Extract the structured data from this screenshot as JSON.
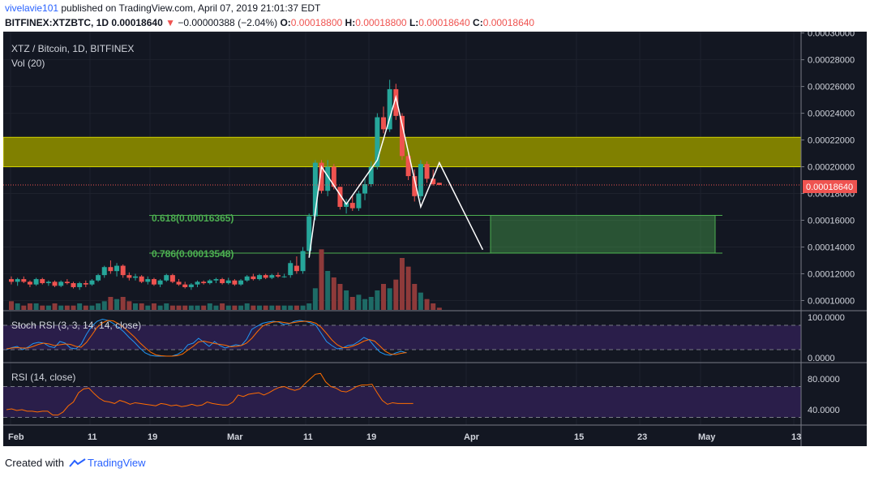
{
  "header": {
    "user": "vivelavie101",
    "published": " published on TradingView.com, April 07, 2019 21:01:37 EDT",
    "symbol": "BITFINEX:XTZBTC, 1D",
    "last": "0.00018640",
    "change_arrow": "▼",
    "change": "−0.00000388 (−2.04%)",
    "o_label": "O:",
    "o_value": "0.00018800",
    "h_label": "H:",
    "h_value": "0.00018800",
    "l_label": "L:",
    "l_value": "0.00018640",
    "c_label": "C:",
    "c_value": "0.00018640"
  },
  "main_pane": {
    "legend_title": "XTZ / Bitcoin, 1D, BITFINEX",
    "legend_vol": "Vol (20)",
    "price_badge": "0.00018640",
    "fib_618": "0.618(0.00016365)",
    "fib_786": "0.786(0.00013548)"
  },
  "stoch_pane": {
    "legend": "Stoch RSI (3, 3, 14, 14, close)"
  },
  "rsi_pane": {
    "legend": "RSI (14, close)"
  },
  "footer": {
    "created": "Created with",
    "brand": "TradingView"
  },
  "colors": {
    "background": "#131722",
    "up": "#26a69a",
    "down": "#ef5350",
    "zone_yellow": "#808000",
    "zone_green": "#4caf50",
    "stoch_k": "#2196f3",
    "stoch_d": "#ff6d00",
    "rsi": "#ff6d00",
    "band_purple": "#2a1e4a"
  },
  "chart_data": [
    {
      "type": "candlestick",
      "title": "XTZ / Bitcoin, 1D, BITFINEX",
      "ylim": [
        9.3e-05,
        0.000301
      ],
      "y_ticks": [
        "0.00030000",
        "0.00028000",
        "0.00026000",
        "0.00024000",
        "0.00022000",
        "0.00020000",
        "0.00018000",
        "0.00016000",
        "0.00014000",
        "0.00012000",
        "0.00010000"
      ],
      "x_ticks": [
        "Feb",
        "11",
        "19",
        "Mar",
        "11",
        "19",
        "Apr",
        "15",
        "23",
        "May",
        "13"
      ],
      "resistance_zone": [
        0.0002,
        0.000222
      ],
      "fib_levels": [
        {
          "label": "0.618",
          "value": 0.00016365
        },
        {
          "label": "0.786",
          "value": 0.00013548
        }
      ],
      "last_price": 0.0001864,
      "candles": [
        [
          0.000116,
          0.000118,
          0.000112,
          0.000114
        ],
        [
          0.000114,
          0.000117,
          0.000111,
          0.000116
        ],
        [
          0.000116,
          0.000118,
          0.000113,
          0.000114
        ],
        [
          0.000114,
          0.000115,
          0.00011,
          0.000112
        ],
        [
          0.000112,
          0.000117,
          0.000111,
          0.000116
        ],
        [
          0.000116,
          0.000117,
          0.000112,
          0.000113
        ],
        [
          0.000113,
          0.000115,
          0.000111,
          0.000114
        ],
        [
          0.000114,
          0.000115,
          0.00011,
          0.000111
        ],
        [
          0.000111,
          0.000115,
          0.00011,
          0.000114
        ],
        [
          0.000114,
          0.000116,
          0.000112,
          0.000113
        ],
        [
          0.000113,
          0.000114,
          0.000109,
          0.00011
        ],
        [
          0.00011,
          0.000114,
          0.000108,
          0.000113
        ],
        [
          0.000113,
          0.000115,
          0.00011,
          0.000112
        ],
        [
          0.000112,
          0.000116,
          0.000111,
          0.000115
        ],
        [
          0.000115,
          0.00012,
          0.000114,
          0.000119
        ],
        [
          0.000119,
          0.000126,
          0.000117,
          0.000125
        ],
        [
          0.000125,
          0.00013,
          0.00012,
          0.000122
        ],
        [
          0.000122,
          0.000128,
          0.000118,
          0.000126
        ],
        [
          0.000126,
          0.000127,
          0.000117,
          0.000119
        ],
        [
          0.000119,
          0.000121,
          0.000115,
          0.000117
        ],
        [
          0.000117,
          0.00012,
          0.000115,
          0.000118
        ],
        [
          0.000118,
          0.000119,
          0.000113,
          0.000114
        ],
        [
          0.000114,
          0.000118,
          0.000112,
          0.000116
        ],
        [
          0.000116,
          0.000117,
          0.000111,
          0.000112
        ],
        [
          0.000112,
          0.000116,
          0.00011,
          0.000115
        ],
        [
          0.000115,
          0.00012,
          0.000114,
          0.000119
        ],
        [
          0.000119,
          0.00012,
          0.000113,
          0.000114
        ],
        [
          0.000114,
          0.000116,
          0.000111,
          0.000112
        ],
        [
          0.000112,
          0.000114,
          0.000109,
          0.00011
        ],
        [
          0.00011,
          0.000113,
          0.000108,
          0.000112
        ],
        [
          0.000112,
          0.000115,
          0.00011,
          0.000114
        ],
        [
          0.000114,
          0.000115,
          0.000112,
          0.000113
        ],
        [
          0.000113,
          0.000116,
          0.000112,
          0.000115
        ],
        [
          0.000115,
          0.000117,
          0.000113,
          0.000116
        ],
        [
          0.000116,
          0.000117,
          0.000112,
          0.000113
        ],
        [
          0.000113,
          0.000117,
          0.000112,
          0.000115
        ],
        [
          0.000115,
          0.000116,
          0.000111,
          0.000112
        ],
        [
          0.000112,
          0.000116,
          0.000111,
          0.000115
        ],
        [
          0.000115,
          0.000119,
          0.000114,
          0.000118
        ],
        [
          0.000118,
          0.00012,
          0.000115,
          0.000116
        ],
        [
          0.000116,
          0.00012,
          0.000115,
          0.000119
        ],
        [
          0.000119,
          0.00012,
          0.000116,
          0.000117
        ],
        [
          0.000117,
          0.00012,
          0.000116,
          0.000119
        ],
        [
          0.000119,
          0.000121,
          0.000117,
          0.000118
        ],
        [
          0.000118,
          0.00012,
          0.000117,
          0.000118
        ],
        [
          0.000119,
          0.00013,
          0.000117,
          0.000128
        ],
        [
          0.000126,
          0.000133,
          0.00012,
          0.000122
        ],
        [
          0.000122,
          0.00014,
          0.00012,
          0.000137
        ],
        [
          0.000137,
          0.000165,
          0.000133,
          0.000163
        ],
        [
          0.000163,
          0.000205,
          0.00016,
          0.000203
        ],
        [
          0.000203,
          0.000205,
          0.00018,
          0.000182
        ],
        [
          0.000182,
          0.000205,
          0.000178,
          0.0002
        ],
        [
          0.0002,
          0.000202,
          0.000183,
          0.000185
        ],
        [
          0.000185,
          0.000185,
          0.000168,
          0.00017
        ],
        [
          0.00017,
          0.000176,
          0.000165,
          0.000173
        ],
        [
          0.000173,
          0.000178,
          0.000167,
          0.000169
        ],
        [
          0.000169,
          0.000182,
          0.000167,
          0.00018
        ],
        [
          0.00018,
          0.000191,
          0.000175,
          0.000187
        ],
        [
          0.000187,
          0.000204,
          0.000185,
          0.0002
        ],
        [
          0.0002,
          0.00024,
          0.000198,
          0.000237
        ],
        [
          0.000237,
          0.000245,
          0.000225,
          0.000228
        ],
        [
          0.000228,
          0.000265,
          0.000226,
          0.000258
        ],
        [
          0.000258,
          0.000262,
          0.000235,
          0.000238
        ],
        [
          0.000238,
          0.00024,
          0.000205,
          0.000208
        ],
        [
          0.000208,
          0.00021,
          0.00019,
          0.000193
        ],
        [
          0.000193,
          0.000198,
          0.000174,
          0.000178
        ],
        [
          0.000178,
          0.000205,
          0.000175,
          0.000202
        ],
        [
          0.000202,
          0.000204,
          0.000188,
          0.000191
        ],
        [
          0.000191,
          0.000198,
          0.000186,
          0.000187
        ],
        [
          0.000188,
          0.000188,
          0.0001864,
          0.0001864
        ]
      ],
      "volume": [
        4,
        3,
        2,
        3,
        3,
        2,
        2,
        3,
        2,
        2,
        2,
        3,
        2,
        2,
        3,
        4,
        6,
        5,
        6,
        4,
        3,
        3,
        2,
        3,
        2,
        3,
        2,
        2,
        2,
        2,
        2,
        2,
        3,
        2,
        3,
        2,
        2,
        2,
        3,
        2,
        2,
        2,
        2,
        2,
        2,
        2,
        2,
        2,
        3,
        10,
        28,
        18,
        15,
        12,
        9,
        6,
        7,
        5,
        6,
        9,
        12,
        10,
        14,
        24,
        20,
        12,
        8,
        5,
        3,
        1
      ],
      "volume_max": 30
    },
    {
      "type": "line",
      "title": "Stoch RSI (3, 3, 14, 14, close)",
      "ylim": [
        0,
        100
      ],
      "y_ticks": [
        "100.0000",
        "0.0000"
      ],
      "bands": [
        80,
        20
      ],
      "series": [
        {
          "name": "K",
          "values": [
            20,
            25,
            28,
            20,
            26,
            35,
            38,
            36,
            28,
            25,
            40,
            36,
            24,
            22,
            33,
            58,
            78,
            90,
            95,
            92,
            85,
            75,
            64,
            50,
            38,
            24,
            12,
            6,
            4,
            4,
            4,
            4,
            8,
            16,
            32,
            36,
            48,
            38,
            28,
            40,
            30,
            24,
            28,
            32,
            30,
            45,
            70,
            78,
            85,
            88,
            90,
            88,
            82,
            84,
            90,
            92,
            90,
            86,
            80,
            60,
            40,
            30,
            22,
            24,
            30,
            32,
            40,
            50,
            44,
            28,
            14,
            8,
            6,
            12,
            16,
            12
          ]
        },
        {
          "name": "D",
          "values": [
            22,
            24,
            25,
            24,
            24,
            28,
            33,
            36,
            34,
            30,
            32,
            34,
            33,
            28,
            26,
            38,
            56,
            75,
            86,
            92,
            91,
            84,
            75,
            63,
            51,
            37,
            25,
            14,
            7,
            5,
            4,
            4,
            5,
            9,
            19,
            28,
            39,
            41,
            38,
            35,
            33,
            31,
            27,
            28,
            30,
            36,
            48,
            64,
            78,
            84,
            88,
            89,
            87,
            85,
            87,
            89,
            90,
            89,
            85,
            75,
            60,
            44,
            32,
            25,
            25,
            29,
            34,
            41,
            45,
            41,
            29,
            16,
            9,
            8,
            11,
            13
          ]
        }
      ]
    },
    {
      "type": "line",
      "title": "RSI (14, close)",
      "ylim": [
        20,
        100
      ],
      "y_ticks": [
        "80.0000",
        "40.0000"
      ],
      "bands": [
        70,
        30
      ],
      "series": [
        {
          "name": "RSI",
          "values": [
            40,
            41,
            39,
            40,
            38,
            38,
            37,
            38,
            38,
            33,
            33,
            37,
            45,
            50,
            62,
            67,
            68,
            61,
            55,
            51,
            50,
            48,
            52,
            50,
            47,
            49,
            48,
            47,
            46,
            45,
            48,
            47,
            45,
            46,
            44,
            45,
            47,
            45,
            46,
            50,
            48,
            47,
            46,
            46,
            50,
            59,
            57,
            60,
            61,
            62,
            59,
            62,
            66,
            69,
            70,
            67,
            65,
            67,
            74,
            80,
            86,
            87,
            76,
            70,
            68,
            64,
            63,
            66,
            70,
            72,
            72,
            73,
            62,
            52,
            47,
            49,
            48,
            48,
            48,
            48
          ]
        }
      ]
    }
  ]
}
